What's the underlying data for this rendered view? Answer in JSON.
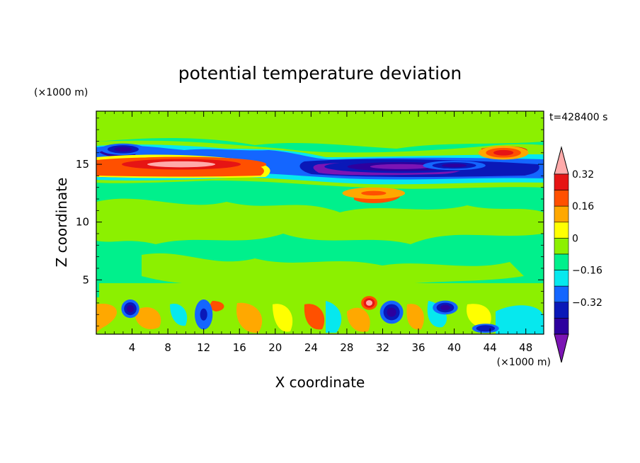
{
  "chart_data": {
    "type": "heatmap",
    "title": "potential temperature deviation",
    "xlabel": "X coordinate",
    "ylabel": "Z coordinate",
    "x_unit": "(×1000 m)",
    "y_unit": "(×1000 m)",
    "time_label": "t=428400 s",
    "x_range": [
      0,
      50
    ],
    "y_range": [
      0.3,
      19.6
    ],
    "x_ticks": [
      "4",
      "8",
      "12",
      "16",
      "20",
      "24",
      "28",
      "32",
      "36",
      "40",
      "44",
      "48"
    ],
    "x_tick_values": [
      4,
      8,
      12,
      16,
      20,
      24,
      28,
      32,
      36,
      40,
      44,
      48
    ],
    "y_ticks": [
      "5",
      "10",
      "15"
    ],
    "y_tick_values": [
      5,
      10,
      15
    ],
    "colorbar": {
      "labels": [
        "0.32",
        "0.16",
        "0",
        "−0.16",
        "−0.32"
      ],
      "label_levels": [
        0.32,
        0.16,
        0,
        -0.16,
        -0.32
      ],
      "levels": [
        -0.4,
        -0.32,
        -0.24,
        -0.16,
        -0.08,
        0,
        0.08,
        0.16,
        0.24,
        0.32,
        0.4
      ],
      "colors": [
        "#7b14b4",
        "#2d009e",
        "#0a18b8",
        "#1466ff",
        "#06e8ee",
        "#00f08c",
        "#8cf000",
        "#ffff00",
        "#ffa800",
        "#ff5000",
        "#e61414",
        "#ffaaaa"
      ]
    },
    "features": [
      {
        "shape": "ellipse",
        "x": 9.5,
        "z": 15.0,
        "dx": 9.5,
        "dz": 0.65,
        "value": 0.45
      },
      {
        "shape": "ellipse",
        "x": 34.0,
        "z": 14.8,
        "dx": 8.5,
        "dz": 0.55,
        "value": -0.45
      },
      {
        "shape": "ellipse",
        "x": 40.0,
        "z": 14.9,
        "dx": 3.5,
        "dz": 0.4,
        "value": -0.34
      },
      {
        "shape": "ellipse",
        "x": 3.0,
        "z": 16.3,
        "dx": 2.5,
        "dz": 0.5,
        "value": -0.34
      },
      {
        "shape": "ellipse",
        "x": 45.5,
        "z": 16.0,
        "dx": 2.8,
        "dz": 0.6,
        "value": 0.34
      },
      {
        "shape": "ellipse",
        "x": 31.0,
        "z": 12.5,
        "dx": 3.5,
        "dz": 0.5,
        "value": 0.26
      },
      {
        "shape": "ellipse",
        "x": 3.8,
        "z": 2.5,
        "dx": 1.0,
        "dz": 0.8,
        "value": -0.34
      },
      {
        "shape": "ellipse",
        "x": 12.0,
        "z": 2.0,
        "dx": 1.0,
        "dz": 1.3,
        "value": -0.26
      },
      {
        "shape": "ellipse",
        "x": 33.0,
        "z": 2.2,
        "dx": 1.3,
        "dz": 1.0,
        "value": -0.34
      },
      {
        "shape": "ellipse",
        "x": 39.0,
        "z": 2.6,
        "dx": 1.4,
        "dz": 0.6,
        "value": -0.34
      },
      {
        "shape": "ellipse",
        "x": 30.5,
        "z": 3.0,
        "dx": 0.9,
        "dz": 0.6,
        "value": 0.4
      },
      {
        "shape": "ellipse",
        "x": 43.5,
        "z": 0.8,
        "dx": 1.5,
        "dz": 0.4,
        "value": -0.3
      }
    ]
  }
}
